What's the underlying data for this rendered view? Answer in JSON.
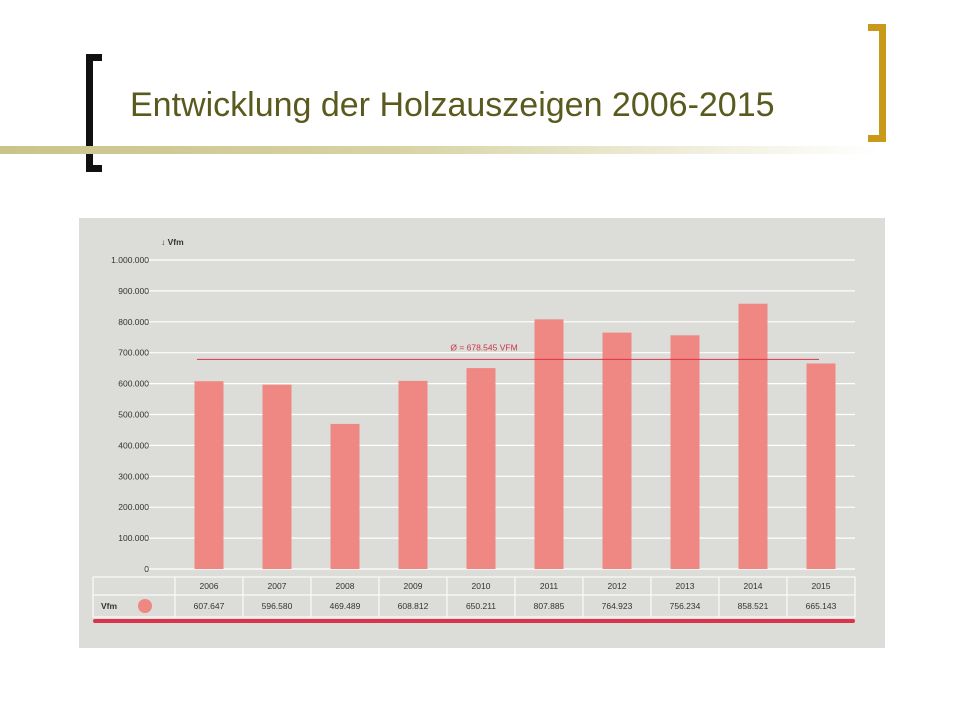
{
  "slide": {
    "title": "Entwicklung der Holzauszeigen 2006-2015"
  },
  "colors": {
    "bar": "#ef8783",
    "accent_line": "#d9344b",
    "panel": "#dcdcd8",
    "title": "#5a5a1e",
    "bracket_right": "#c99a1a"
  },
  "chart_data": {
    "type": "bar",
    "unit_label": "Vfm",
    "categories": [
      "2006",
      "2007",
      "2008",
      "2009",
      "2010",
      "2011",
      "2012",
      "2013",
      "2014",
      "2015"
    ],
    "values": [
      607647,
      596580,
      469489,
      608812,
      650211,
      807885,
      764923,
      756234,
      858521,
      665143
    ],
    "value_labels": [
      "607.647",
      "596.580",
      "469.489",
      "608.812",
      "650.211",
      "807.885",
      "764.923",
      "756.234",
      "858.521",
      "665.143"
    ],
    "ylim": [
      0,
      1000000
    ],
    "yticks": [
      {
        "value": 0,
        "label": "0"
      },
      {
        "value": 100000,
        "label": "100.000"
      },
      {
        "value": 200000,
        "label": "200.000"
      },
      {
        "value": 300000,
        "label": "300.000"
      },
      {
        "value": 400000,
        "label": "400.000"
      },
      {
        "value": 500000,
        "label": "500.000"
      },
      {
        "value": 600000,
        "label": "600.000"
      },
      {
        "value": 700000,
        "label": "700.000"
      },
      {
        "value": 800000,
        "label": "800.000"
      },
      {
        "value": 900000,
        "label": "900.000"
      },
      {
        "value": 1000000,
        "label": "1.000.000"
      }
    ],
    "average": {
      "value": 678545,
      "label": "Ø = 678.545 VFM"
    },
    "grid": true,
    "table_row_label": "Vfm"
  }
}
